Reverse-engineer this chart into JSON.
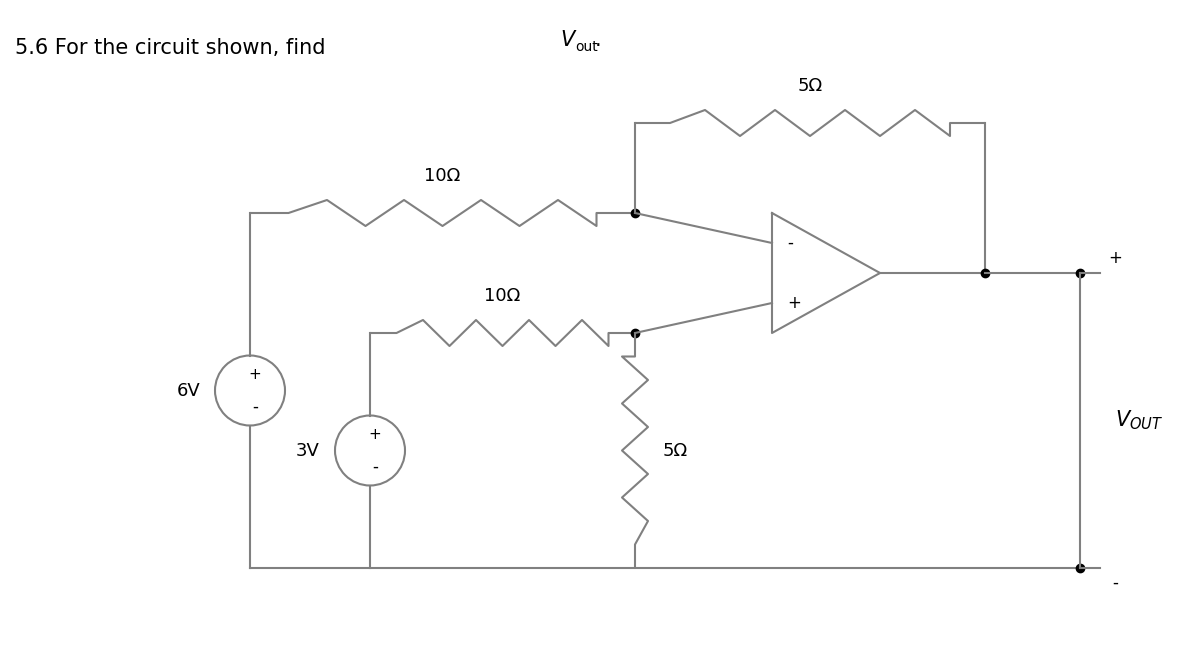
{
  "title": "5.6 For the circuit shown, find V",
  "title_sub": "out",
  "bg_color": "#ffffff",
  "line_color": "#808080",
  "text_color": "#000000",
  "line_width": 1.5,
  "res10_label": "10Ω",
  "res10b_label": "10Ω",
  "res5_label": "5Ω",
  "res5b_label": "5Ω",
  "v6_label": "6V",
  "v3_label": "3V",
  "vout_label": "V",
  "vout_sub": "OUT"
}
